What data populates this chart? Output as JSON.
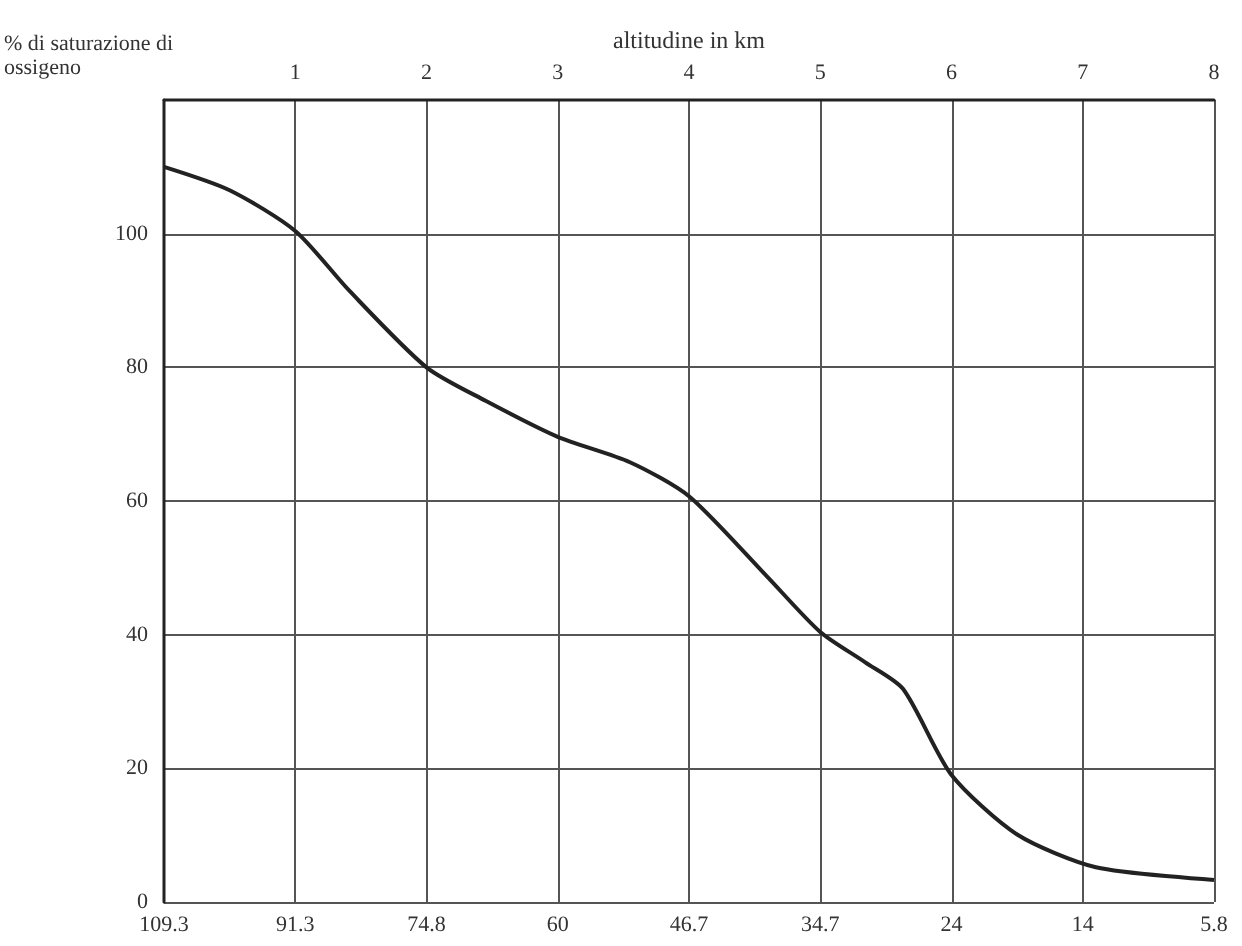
{
  "chart_data": {
    "type": "line",
    "ylabel": "% di saturazione di ossigeno",
    "xlabel": "altitudine in km",
    "x": [
      0,
      0.5,
      1,
      1.41,
      2,
      2.45,
      3,
      3.55,
      4,
      4.59,
      5,
      5.34,
      5.63,
      6,
      6.5,
      7.1,
      8
    ],
    "series": [
      {
        "color": "#222222",
        "values": [
          110,
          106.5,
          100.4,
          91.5,
          80,
          75,
          69.6,
          65.8,
          60.7,
          48.8,
          40.4,
          35.9,
          31.9,
          19,
          10.1,
          5.2,
          3.3
        ]
      }
    ],
    "xlim": [
      0,
      8
    ],
    "xticks": [
      1,
      2,
      3,
      4,
      5,
      6,
      7,
      8
    ],
    "ylim": [
      0,
      120
    ],
    "yticks": [
      0,
      20,
      40,
      60,
      80,
      100
    ],
    "annotations": [
      "109.3",
      "91.3",
      "74.8",
      "60",
      "46.7",
      "34.7",
      "24",
      "14",
      "5.8"
    ],
    "grid": true,
    "marker": "none",
    "line_style": "solid"
  }
}
